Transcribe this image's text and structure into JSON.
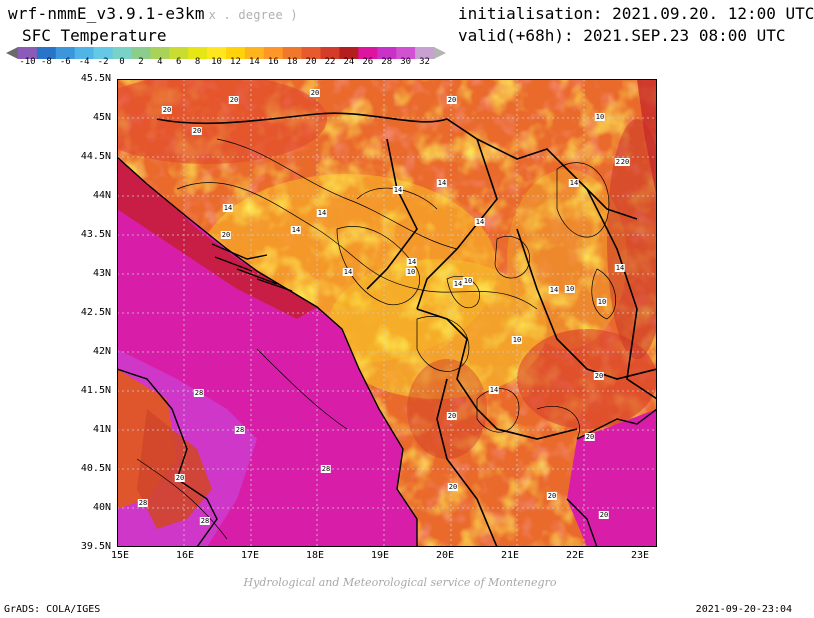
{
  "header": {
    "model_name": "wrf-nmmE_v3.9.1-e3km",
    "units_note": "x . degree )",
    "variable": "SFC Temperature",
    "init_text": "initialisation: 2021.09.20. 12:00 UTC",
    "valid_text": "valid(+68h): 2021.SEP.23 08:00 UTC"
  },
  "colorbar": {
    "ticks": [
      "-10",
      "-8",
      "-6",
      "-4",
      "-2",
      "0",
      "2",
      "4",
      "6",
      "8",
      "10",
      "12",
      "14",
      "16",
      "18",
      "20",
      "22",
      "24",
      "26",
      "28",
      "30",
      "32"
    ],
    "colors": [
      "#8a5cb8",
      "#2874c8",
      "#3c96dc",
      "#50b4e6",
      "#64c8e6",
      "#78d2c8",
      "#8ccc8c",
      "#a8d25a",
      "#c8dc32",
      "#e6e614",
      "#ffe61e",
      "#ffd20a",
      "#ffb41e",
      "#ff9628",
      "#f0782d",
      "#e65a2d",
      "#d23c28",
      "#b41e1e",
      "#dc14a0",
      "#c832c8",
      "#d250d2",
      "#c8a0d2"
    ],
    "end_colors": [
      "#6a6a6a",
      "#b4b4b4"
    ]
  },
  "map": {
    "lat_labels": [
      "45.5N",
      "45N",
      "44.5N",
      "44N",
      "43.5N",
      "43N",
      "42.5N",
      "42N",
      "41.5N",
      "41N",
      "40.5N",
      "40N",
      "39.5N"
    ],
    "lon_labels": [
      "15E",
      "16E",
      "17E",
      "18E",
      "19E",
      "20E",
      "21E",
      "22E",
      "23E"
    ],
    "isotherm_labels": [
      "20",
      "20",
      "20",
      "20",
      "20",
      "10",
      "14",
      "14",
      "14",
      "14",
      "14",
      "20",
      "14",
      "14",
      "10",
      "10",
      "14",
      "14",
      "14",
      "10",
      "14",
      "10",
      "10",
      "20",
      "20",
      "14",
      "14",
      "20",
      "20",
      "20",
      "20",
      "28",
      "28",
      "28",
      "20",
      "28",
      "28",
      "20",
      "20"
    ]
  },
  "footer": {
    "credit": "Hydrological and Meteorological service of Montenegro",
    "grads": "GrADS: COLA/IGES",
    "timestamp": "2021-09-20-23:04"
  }
}
